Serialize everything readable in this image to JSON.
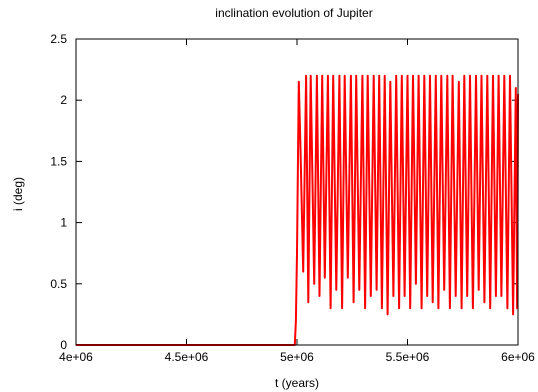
{
  "chart_data": {
    "type": "line",
    "title": "inclination evolution of Jupiter",
    "xlabel": "t (years)",
    "ylabel": "i (deg)",
    "xlim": [
      4000000,
      6000000
    ],
    "ylim": [
      0,
      2.5
    ],
    "x_tick_labels": [
      "4e+06",
      "4.5e+06",
      "5e+06",
      "5.5e+06",
      "6e+06"
    ],
    "x_ticks": [
      4000000,
      4500000,
      5000000,
      5500000,
      6000000
    ],
    "y_tick_labels": [
      "0",
      "0.5",
      "1",
      "1.5",
      "2",
      "2.5"
    ],
    "y_ticks": [
      0,
      0.5,
      1,
      1.5,
      2,
      2.5
    ],
    "grid": false,
    "color": "#ff0000",
    "series": [
      {
        "x": [
          4000000,
          4990000,
          4995000,
          5000000,
          5008000,
          5016000,
          5028000,
          5041000,
          5051000,
          5062000,
          5078000,
          5090000,
          5102000,
          5114000,
          5126000,
          5140000,
          5152000,
          5164000,
          5178000,
          5192000,
          5204000,
          5216000,
          5230000,
          5244000,
          5256000,
          5268000,
          5282000,
          5296000,
          5308000,
          5320000,
          5334000,
          5347000,
          5360000,
          5372000,
          5384000,
          5397000,
          5410000,
          5422000,
          5436000,
          5449000,
          5462000,
          5474000,
          5487000,
          5500000,
          5512000,
          5525000,
          5538000,
          5550000,
          5564000,
          5576000,
          5589000,
          5602000,
          5614000,
          5628000,
          5640000,
          5653000,
          5666000,
          5680000,
          5692000,
          5704000,
          5718000,
          5732000,
          5745000,
          5757000,
          5770000,
          5783000,
          5796000,
          5810000,
          5822000,
          5835000,
          5848000,
          5861000,
          5874000,
          5887000,
          5900000,
          5912000,
          5925000,
          5938000,
          5952000,
          5964000,
          5978000,
          5990000,
          5996000,
          6000000
        ],
        "y": [
          0,
          0,
          0.2,
          0.75,
          2.15,
          1.6,
          0.6,
          2.2,
          0.35,
          2.2,
          0.5,
          2.2,
          0.4,
          2.2,
          0.55,
          2.2,
          0.3,
          2.2,
          0.45,
          2.2,
          0.3,
          2.2,
          0.55,
          2.2,
          0.35,
          2.2,
          0.45,
          2.2,
          0.3,
          2.2,
          0.4,
          2.2,
          0.45,
          2.2,
          0.3,
          2.2,
          0.25,
          2.15,
          0.4,
          2.2,
          0.3,
          2.2,
          0.4,
          2.2,
          0.3,
          2.2,
          0.5,
          2.2,
          0.3,
          2.2,
          0.4,
          2.2,
          0.35,
          2.2,
          0.3,
          2.2,
          0.45,
          2.2,
          0.3,
          2.2,
          0.4,
          2.15,
          0.3,
          2.2,
          0.4,
          2.2,
          0.3,
          2.2,
          0.45,
          2.2,
          0.35,
          2.2,
          0.3,
          2.2,
          0.4,
          2.2,
          0.4,
          2.2,
          0.3,
          2.2,
          0.25,
          2.1,
          0.3,
          2.05
        ]
      }
    ]
  }
}
